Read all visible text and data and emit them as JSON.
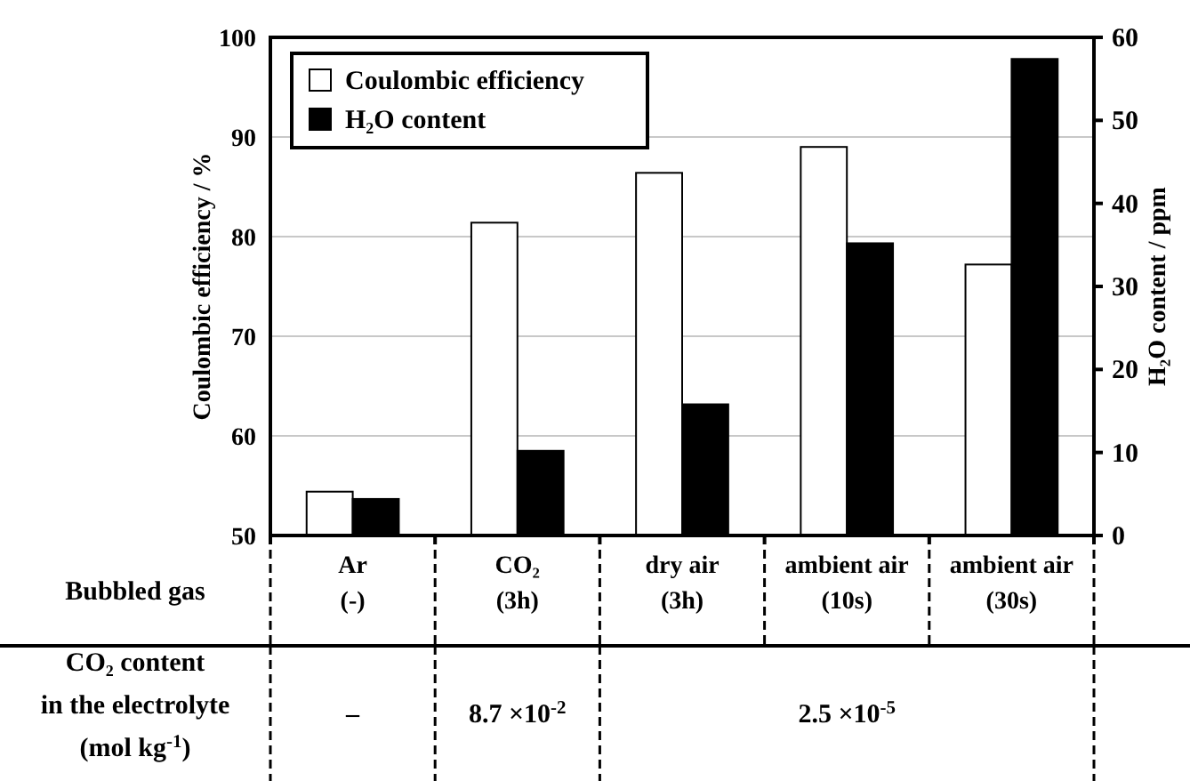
{
  "chart_data": {
    "type": "bar",
    "xlabel": "Bubbled gas",
    "ylabel": "Coulombic efficiency / %",
    "y2label": "H₂O content / ppm",
    "categories": [
      "Ar\n(-)",
      "CO₂\n(3h)",
      "dry air\n(3h)",
      "ambient air\n(10s)",
      "ambient air\n(30s)"
    ],
    "series": [
      {
        "name": "Coulombic efficiency",
        "color": "#ffffff",
        "values": [
          54.4,
          81.4,
          86.4,
          89.0,
          77.2
        ]
      },
      {
        "name": "H₂O content",
        "color": "#000000",
        "axis": "y2",
        "values": [
          4.4,
          10.2,
          15.8,
          35.2,
          57.4
        ]
      }
    ],
    "ylim": [
      50,
      100
    ],
    "yticks": [
      50,
      60,
      70,
      80,
      90,
      100
    ],
    "y2lim": [
      0,
      60
    ],
    "y2ticks": [
      0,
      10,
      20,
      30,
      40,
      50,
      60
    ],
    "grid": "y",
    "legend": "top left",
    "annotations": [
      "CO₂ content\nin the electrolyte\n(mol kg$^{-1}$)",
      "–",
      "8.7 ×10$^{-2}$",
      "2.5 ×10$^{-5}$"
    ]
  }
}
